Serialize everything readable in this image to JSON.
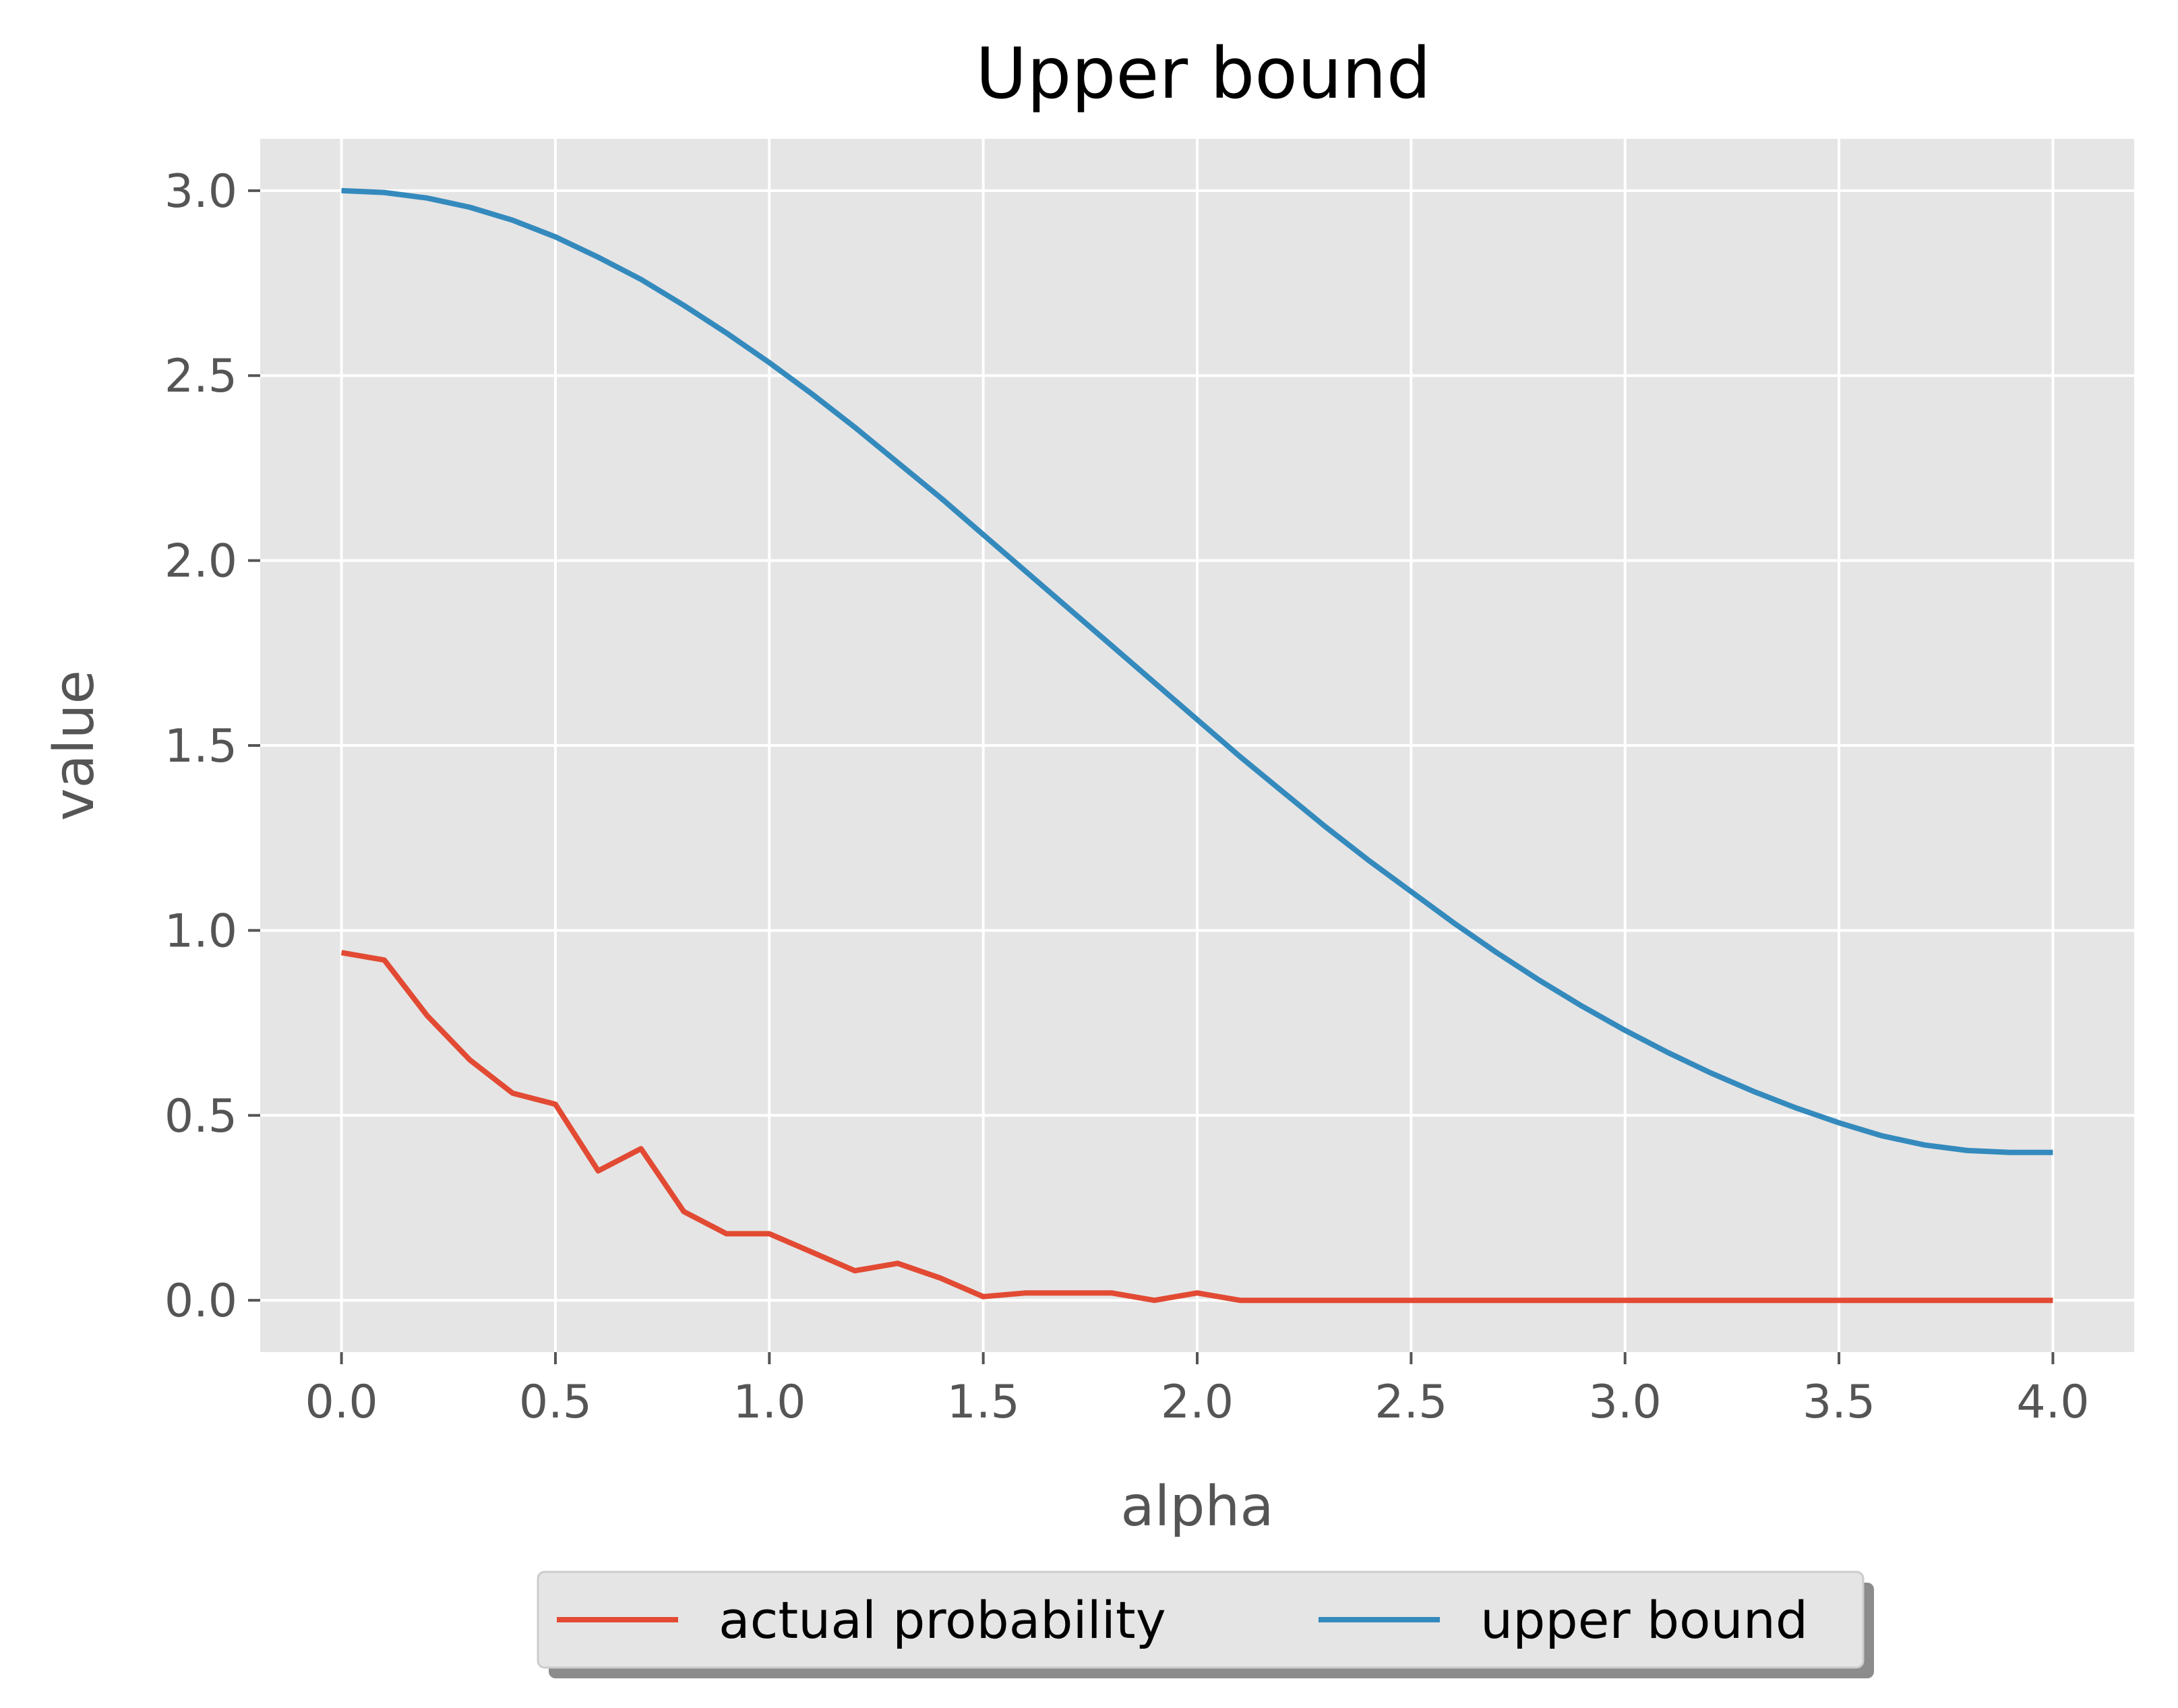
{
  "chart_data": {
    "type": "line",
    "title": "Upper bound",
    "xlabel": "alpha",
    "ylabel": "value",
    "xlim": [
      -0.19,
      4.19
    ],
    "ylim": [
      -0.14,
      3.14
    ],
    "x_ticks": [
      "0.0",
      "0.5",
      "1.0",
      "1.5",
      "2.0",
      "2.5",
      "3.0",
      "3.5",
      "4.0"
    ],
    "y_ticks": [
      "0.0",
      "0.5",
      "1.0",
      "1.5",
      "2.0",
      "2.5",
      "3.0"
    ],
    "grid": true,
    "legend_position": "bottom-center",
    "background": "#e5e5e5",
    "x": [
      0.0,
      0.1,
      0.2,
      0.3,
      0.4,
      0.5,
      0.6,
      0.7,
      0.8,
      0.9,
      1.0,
      1.1,
      1.2,
      1.3,
      1.4,
      1.5,
      1.6,
      1.7,
      1.8,
      1.9,
      2.0,
      2.1,
      2.2,
      2.3,
      2.4,
      2.5,
      2.6,
      2.7,
      2.8,
      2.9,
      3.0,
      3.1,
      3.2,
      3.3,
      3.4,
      3.5,
      3.6,
      3.7,
      3.8,
      3.9,
      4.0
    ],
    "series": [
      {
        "name": "actual probability",
        "color": "#e24a33",
        "values": [
          0.94,
          0.92,
          0.77,
          0.65,
          0.56,
          0.53,
          0.35,
          0.41,
          0.24,
          0.18,
          0.18,
          0.13,
          0.08,
          0.1,
          0.06,
          0.01,
          0.02,
          0.02,
          0.02,
          0.0,
          0.02,
          0.0,
          0.0,
          0.0,
          0.0,
          0.0,
          0.0,
          0.0,
          0.0,
          0.0,
          0.0,
          0.0,
          0.0,
          0.0,
          0.0,
          0.0,
          0.0,
          0.0,
          0.0,
          0.0,
          0.0
        ]
      },
      {
        "name": "upper bound",
        "color": "#348abd",
        "values": [
          3.0,
          2.995,
          2.98,
          2.955,
          2.92,
          2.875,
          2.82,
          2.76,
          2.69,
          2.615,
          2.535,
          2.45,
          2.36,
          2.265,
          2.17,
          2.07,
          1.97,
          1.87,
          1.77,
          1.67,
          1.57,
          1.47,
          1.375,
          1.28,
          1.19,
          1.105,
          1.02,
          0.94,
          0.865,
          0.795,
          0.73,
          0.67,
          0.615,
          0.565,
          0.52,
          0.48,
          0.445,
          0.42,
          0.405,
          0.4,
          0.4
        ]
      }
    ]
  }
}
